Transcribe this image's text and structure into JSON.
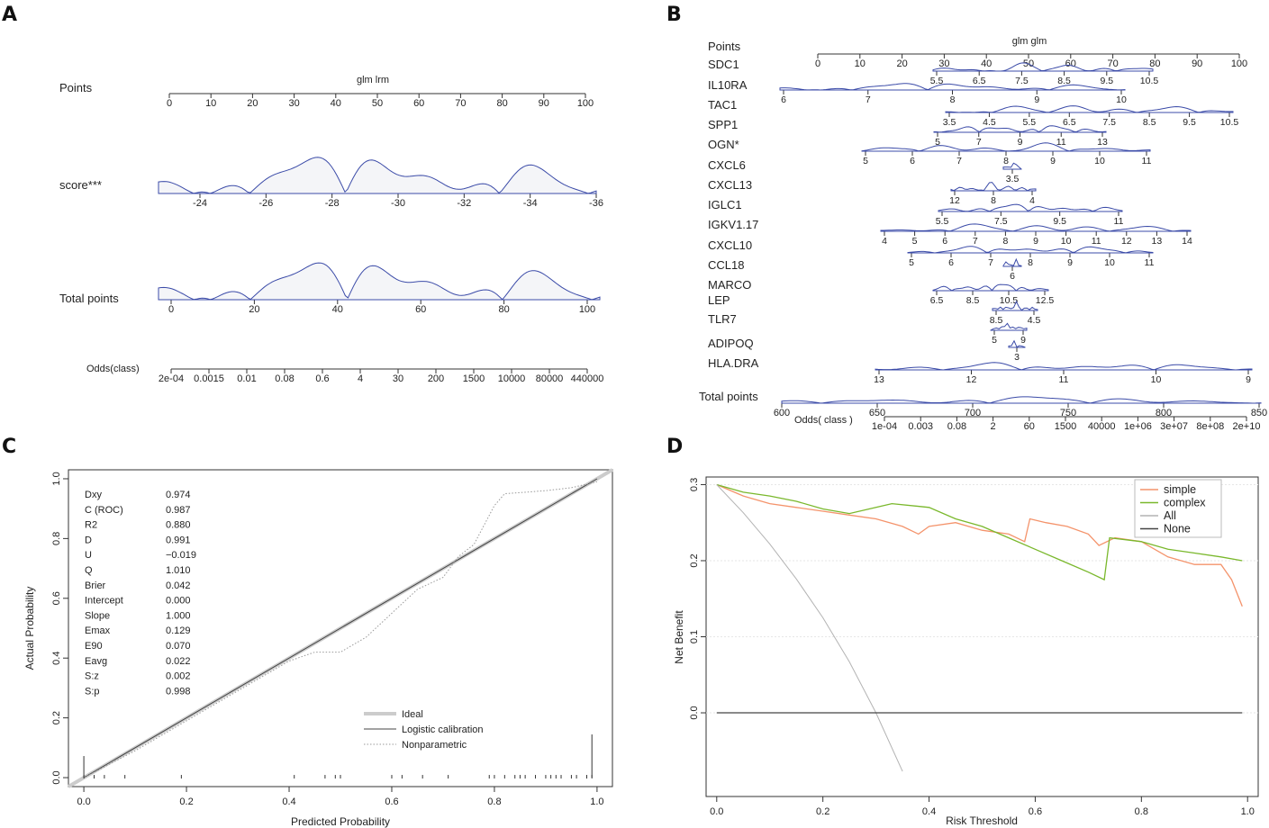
{
  "panels": [
    {
      "label": "A"
    },
    {
      "label": "B"
    },
    {
      "label": "C"
    },
    {
      "label": "D"
    }
  ],
  "chart_data": [
    {
      "panel": "A",
      "type": "nomogram",
      "model_label": "glm lrm",
      "points": {
        "label": "Points",
        "ticks": [
          "0",
          "10",
          "20",
          "30",
          "40",
          "50",
          "60",
          "70",
          "80",
          "90",
          "100"
        ]
      },
      "score": {
        "label": "score***",
        "ticks": [
          "-24",
          "-26",
          "-28",
          "-30",
          "-32",
          "-34",
          "-36"
        ]
      },
      "total_points": {
        "label": "Total points",
        "ticks": [
          "0",
          "20",
          "40",
          "60",
          "80",
          "100"
        ]
      },
      "odds": {
        "label": "Odds(class)",
        "ticks": [
          "2e-04",
          "0.0015",
          "0.01",
          "0.08",
          "0.6",
          "4",
          "30",
          "200",
          "1500",
          "10000",
          "80000",
          "440000"
        ]
      },
      "density_color": "#3b4ba8"
    },
    {
      "panel": "B",
      "type": "nomogram",
      "model_label": "glm glm",
      "points": {
        "label": "Points",
        "ticks": [
          "0",
          "10",
          "20",
          "30",
          "40",
          "50",
          "60",
          "70",
          "80",
          "90",
          "100"
        ]
      },
      "variables": [
        {
          "name": "SDC1",
          "ticks": [
            "5.5",
            "6.5",
            "7.5",
            "8.5",
            "9.5",
            "10.5"
          ]
        },
        {
          "name": "IL10RA",
          "ticks": [
            "6",
            "7",
            "8",
            "9",
            "10"
          ]
        },
        {
          "name": "TAC1",
          "ticks": [
            "3.5",
            "4.5",
            "5.5",
            "6.5",
            "7.5",
            "8.5",
            "9.5",
            "10.5"
          ]
        },
        {
          "name": "SPP1",
          "ticks": [
            "5",
            "7",
            "9",
            "11",
            "13"
          ]
        },
        {
          "name": "OGN*",
          "ticks": [
            "5",
            "6",
            "7",
            "8",
            "9",
            "10",
            "11"
          ]
        },
        {
          "name": "CXCL6",
          "ticks": [
            "3.5"
          ]
        },
        {
          "name": "CXCL13",
          "ticks": [
            "12",
            "8",
            "4"
          ]
        },
        {
          "name": "IGLC1",
          "ticks": [
            "5.5",
            "7.5",
            "9.5",
            "11"
          ]
        },
        {
          "name": "IGKV1.17",
          "ticks": [
            "4",
            "5",
            "6",
            "7",
            "8",
            "9",
            "10",
            "11",
            "12",
            "13",
            "14"
          ]
        },
        {
          "name": "CXCL10",
          "ticks": [
            "5",
            "6",
            "7",
            "8",
            "9",
            "10",
            "11"
          ]
        },
        {
          "name": "CCL18",
          "ticks": [
            "6"
          ]
        },
        {
          "name": "MARCO",
          "ticks": [
            "6.5",
            "8.5",
            "10.5",
            "12.5"
          ]
        },
        {
          "name": "LEP",
          "ticks": [
            "8.5",
            "4.5"
          ]
        },
        {
          "name": "TLR7",
          "ticks": [
            "5",
            "9"
          ]
        },
        {
          "name": "ADIPOQ",
          "ticks": [
            "3"
          ]
        },
        {
          "name": "HLA.DRA",
          "ticks": [
            "13",
            "12",
            "11",
            "10",
            "9"
          ]
        }
      ],
      "total_points": {
        "label": "Total points",
        "ticks": [
          "600",
          "650",
          "700",
          "750",
          "800",
          "850"
        ]
      },
      "odds": {
        "label": "Odds( class )",
        "ticks": [
          "1e-04",
          "0.003",
          "0.08",
          "2",
          "60",
          "1500",
          "40000",
          "1e+06",
          "3e+07",
          "8e+08",
          "2e+10"
        ]
      },
      "density_color": "#3b4ba8"
    },
    {
      "panel": "C",
      "type": "line",
      "title": "",
      "xlabel": "Predicted Probability",
      "ylabel": "Actual Probability",
      "xlim": [
        -0.03,
        1.03
      ],
      "ylim": [
        -0.03,
        1.03
      ],
      "xticks": [
        "0.0",
        "0.2",
        "0.4",
        "0.6",
        "0.8",
        "1.0"
      ],
      "yticks": [
        "0.0",
        "0.2",
        "0.4",
        "0.6",
        "0.8",
        "1.0"
      ],
      "stats": [
        {
          "name": "Dxy",
          "value": "0.974"
        },
        {
          "name": "C (ROC)",
          "value": "0.987"
        },
        {
          "name": "R2",
          "value": "0.880"
        },
        {
          "name": "D",
          "value": "0.991"
        },
        {
          "name": "U",
          "value": "−0.019"
        },
        {
          "name": "Q",
          "value": "1.010"
        },
        {
          "name": "Brier",
          "value": "0.042"
        },
        {
          "name": "Intercept",
          "value": "0.000"
        },
        {
          "name": "Slope",
          "value": "1.000"
        },
        {
          "name": "Emax",
          "value": "0.129"
        },
        {
          "name": "E90",
          "value": "0.070"
        },
        {
          "name": "Eavg",
          "value": "0.022"
        },
        {
          "name": "S:z",
          "value": "0.002"
        },
        {
          "name": "S:p",
          "value": "0.998"
        }
      ],
      "series": [
        {
          "name": "Ideal",
          "x": [
            -0.03,
            1.03
          ],
          "y": [
            -0.03,
            1.03
          ]
        },
        {
          "name": "Logistic calibration",
          "x": [
            0.0,
            1.0
          ],
          "y": [
            0.0,
            1.0
          ]
        },
        {
          "name": "Nonparametric",
          "x": [
            0.0,
            0.1,
            0.2,
            0.3,
            0.4,
            0.45,
            0.5,
            0.55,
            0.6,
            0.65,
            0.7,
            0.73,
            0.76,
            0.8,
            0.82,
            0.9,
            0.95,
            1.0
          ],
          "y": [
            0.0,
            0.09,
            0.19,
            0.29,
            0.39,
            0.42,
            0.42,
            0.47,
            0.55,
            0.63,
            0.67,
            0.74,
            0.78,
            0.91,
            0.95,
            0.96,
            0.97,
            0.99
          ]
        }
      ],
      "legend": [
        "Ideal",
        "Logistic calibration",
        "Nonparametric"
      ],
      "rug_top": [
        0.99
      ],
      "rug_bottom": [
        0.0,
        0.02,
        0.04,
        0.08,
        0.19,
        0.41,
        0.47,
        0.49,
        0.5,
        0.6,
        0.62,
        0.66,
        0.71,
        0.79,
        0.8,
        0.82,
        0.84,
        0.85,
        0.86,
        0.88,
        0.9,
        0.91,
        0.92,
        0.93,
        0.95,
        0.96,
        0.98,
        0.99
      ],
      "colors": {
        "ideal": "#cccccc",
        "logistic": "#444444",
        "nonparametric": "#999999"
      }
    },
    {
      "panel": "D",
      "type": "line",
      "title": "",
      "xlabel": "Risk Threshold",
      "ylabel": "Net Benefit",
      "xlim": [
        -0.02,
        1.02
      ],
      "ylim": [
        -0.11,
        0.31
      ],
      "xticks": [
        "0.0",
        "0.2",
        "0.4",
        "0.6",
        "0.8",
        "1.0"
      ],
      "yticks": [
        "0.0",
        "0.1",
        "0.2",
        "0.3"
      ],
      "series": [
        {
          "name": "simple",
          "x": [
            0.0,
            0.05,
            0.1,
            0.15,
            0.2,
            0.25,
            0.3,
            0.35,
            0.38,
            0.4,
            0.45,
            0.5,
            0.55,
            0.58,
            0.59,
            0.62,
            0.66,
            0.7,
            0.72,
            0.75,
            0.8,
            0.85,
            0.9,
            0.95,
            0.97,
            0.99
          ],
          "y": [
            0.3,
            0.285,
            0.275,
            0.27,
            0.265,
            0.26,
            0.255,
            0.245,
            0.235,
            0.245,
            0.25,
            0.24,
            0.235,
            0.225,
            0.255,
            0.25,
            0.245,
            0.235,
            0.22,
            0.23,
            0.225,
            0.205,
            0.195,
            0.195,
            0.175,
            0.14
          ],
          "color": "#f4936b"
        },
        {
          "name": "complex",
          "x": [
            0.0,
            0.05,
            0.1,
            0.15,
            0.2,
            0.25,
            0.3,
            0.33,
            0.4,
            0.45,
            0.5,
            0.55,
            0.6,
            0.65,
            0.7,
            0.73,
            0.74,
            0.8,
            0.85,
            0.9,
            0.95,
            0.99
          ],
          "y": [
            0.3,
            0.29,
            0.285,
            0.278,
            0.268,
            0.262,
            0.27,
            0.275,
            0.27,
            0.255,
            0.245,
            0.23,
            0.215,
            0.2,
            0.185,
            0.175,
            0.23,
            0.225,
            0.215,
            0.21,
            0.205,
            0.2
          ],
          "color": "#7ab82c"
        },
        {
          "name": "All",
          "x": [
            0.0,
            0.05,
            0.1,
            0.15,
            0.2,
            0.25,
            0.3,
            0.35
          ],
          "y": [
            0.3,
            0.263,
            0.222,
            0.176,
            0.125,
            0.067,
            0.0,
            -0.077
          ],
          "color": "#b3b3b3"
        },
        {
          "name": "None",
          "x": [
            0.0,
            0.99
          ],
          "y": [
            0.0,
            0.0
          ],
          "color": "#444444"
        }
      ],
      "legend": [
        "simple",
        "complex",
        "All",
        "None"
      ]
    }
  ]
}
